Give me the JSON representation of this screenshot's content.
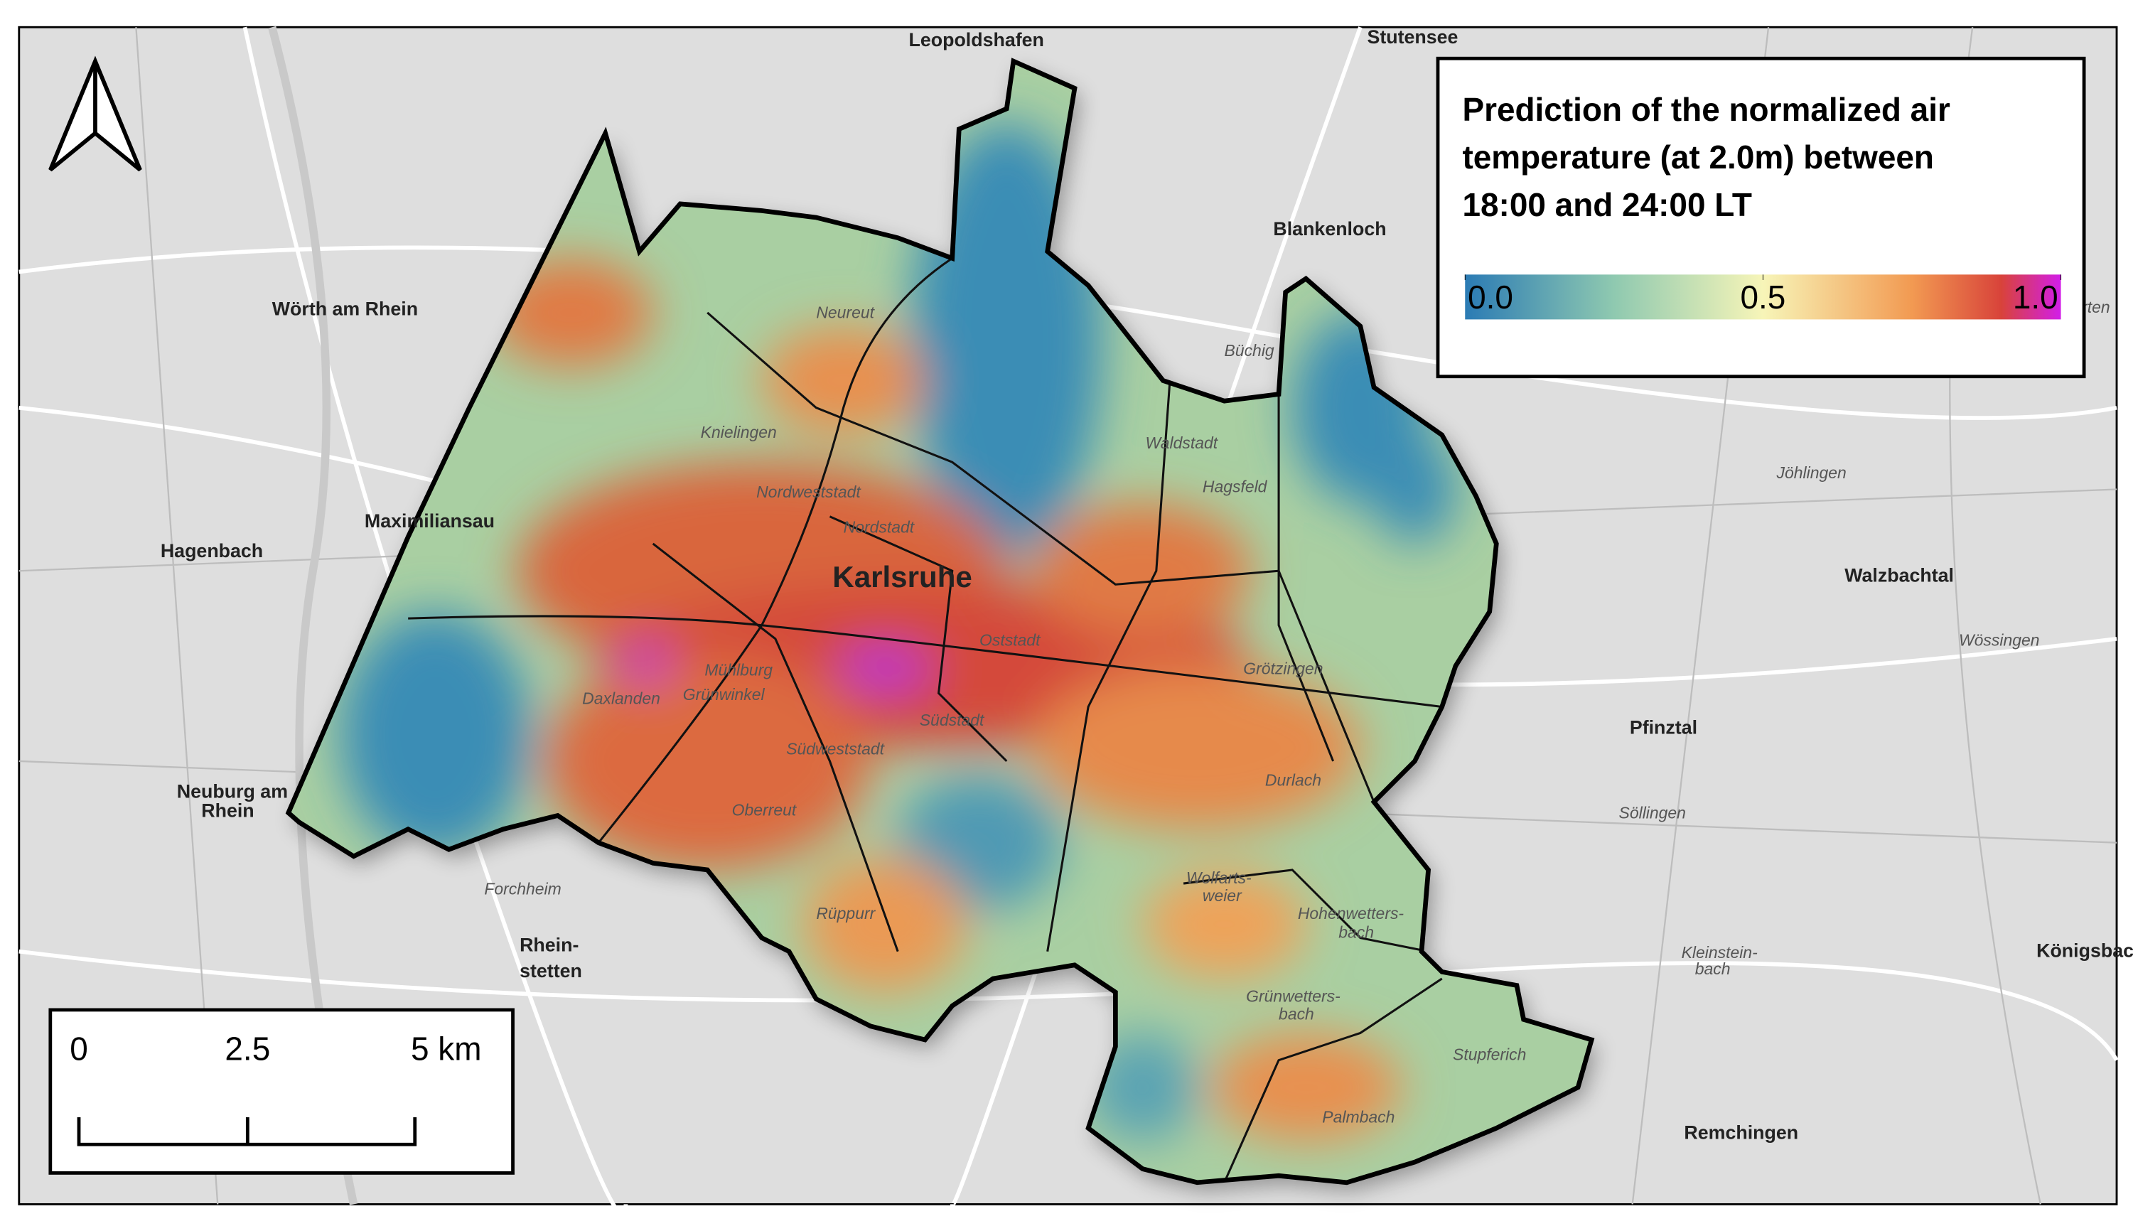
{
  "legend": {
    "title_lines": [
      "Prediction of the normalized air",
      "temperature (at 2.0m) between",
      "18:00 and 24:00 LT"
    ],
    "ticks": [
      {
        "value": 0,
        "label": "0.0"
      },
      {
        "value": 0.5,
        "label": "0.5"
      },
      {
        "value": 1,
        "label": "1.0"
      }
    ]
  },
  "scale_bar": {
    "labels": [
      "0",
      "2.5",
      "5 km"
    ]
  },
  "places": [
    "Leopoldshafen",
    "Stutensee",
    "Wörth am Rhein",
    "Hagenbach",
    "Maximiliansau",
    "Neuburg am",
    "Rhein",
    "Karlsruhe",
    "Neureut",
    "Knielingen",
    "Nordweststadt",
    "Nordstadt",
    "Waldstadt",
    "Hagsfeld",
    "Blankenloch",
    "Büchig",
    "Jöhlingen",
    "Walzbachtal",
    "Wössingen",
    "Grötzingen",
    "Pfinztal",
    "Durlach",
    "Mühlburg",
    "Grünwinkel",
    "Daxlanden",
    "Südweststadt",
    "Südstadt",
    "Oststadt",
    "Oberreut",
    "Rüppurr",
    "Forchheim",
    "Rhein-",
    "stetten",
    "Wolfarts-",
    "weier",
    "Hohenwetters-",
    "bach",
    "Grünwetters-",
    "bach",
    "Stupferich",
    "Palmbach",
    "Söllingen",
    "Remchingen",
    "Königsbach",
    "Kleinstein-",
    "bach",
    "Weingarten"
  ]
}
